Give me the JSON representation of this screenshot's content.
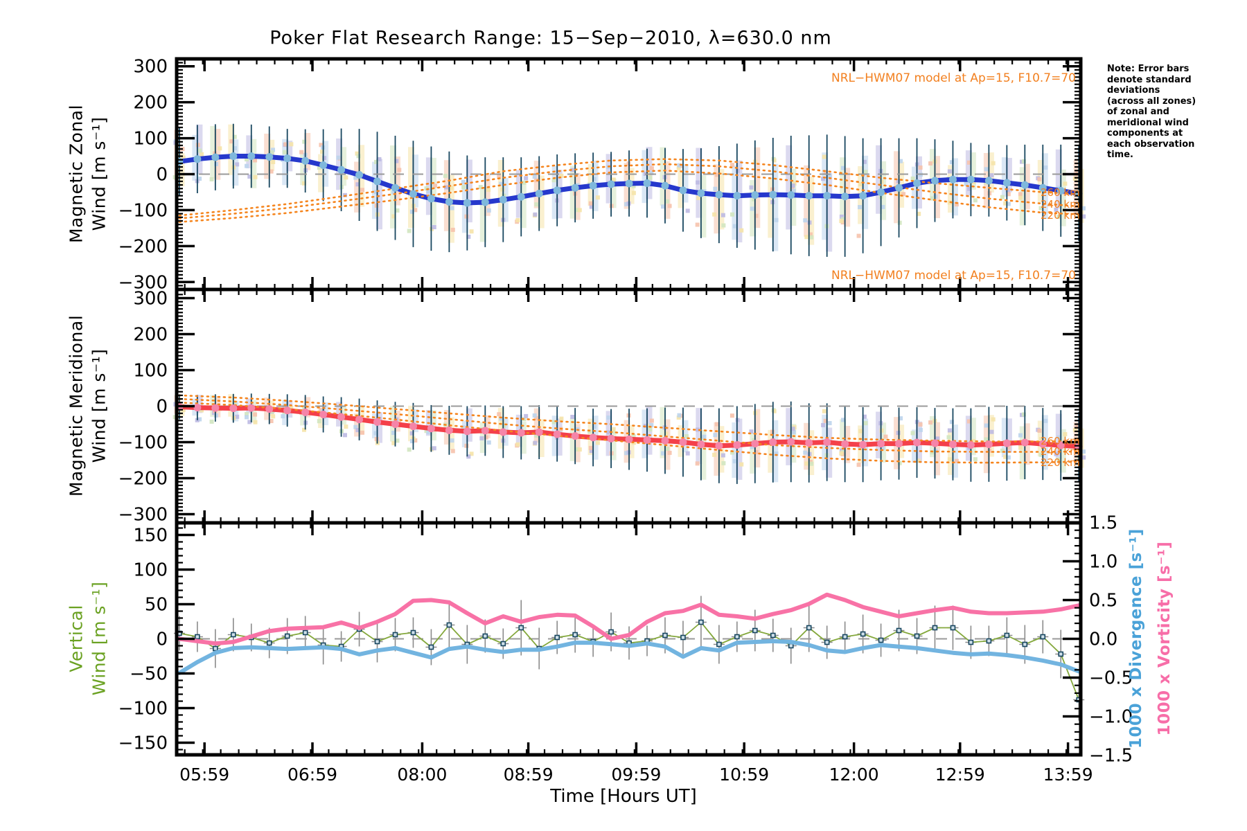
{
  "title": "Poker Flat Research Range: 15−Sep−2010, λ=630.0 nm",
  "note": {
    "lines": [
      "Note: Error bars",
      "denote standard",
      "deviations",
      "(across all zones)",
      "of zonal and",
      "meridional wind",
      "components at",
      "each observation",
      "time."
    ]
  },
  "panel_titles": {
    "zonal_line1": "Magnetic Zonal",
    "zonal_line2": "Wind [m s⁻¹]",
    "meridional_line1": "Magnetic Meridional",
    "meridional_line2": "Wind [m s⁻¹]",
    "vertical_line1": "Vertical",
    "vertical_line2": "Wind [m s⁻¹]",
    "right_divergence": "1000 x Divergence [s⁻¹]",
    "right_vorticity": "1000 x Vorticity [s⁻¹]"
  },
  "colors": {
    "zonal_line": "#2638cc",
    "zonal_marker": "#7fb8dc",
    "meridional_line": "#f4404a",
    "meridional_marker": "#f585a8",
    "model": "#f5851e",
    "legend_text": "#f28020",
    "vertical_line": "#84a83c",
    "vertical_label": "#6aa121",
    "vertical_marker": "#16455f",
    "divergence_line": "#72b4e0",
    "divergence_label": "#4aa2d8",
    "vorticity_line": "#f872a6",
    "vorticity_label": "#f76ea8",
    "errorbar_dark": "#17465f",
    "errorbar_gray": "#8a8a8a",
    "zero_dash": "#999999",
    "band_palette": [
      "#f6c2ac",
      "#f5e3a8",
      "#bcd4ec",
      "#bdb9e2",
      "#d2e5c0"
    ]
  },
  "chart_data": {
    "type": "line",
    "title": "Poker Flat Research Range: 15−Sep−2010, λ=630.0 nm",
    "model_legend": "NRL−HWM07 model at Ap=15, F10.7=70",
    "model_altitudes": [
      "260 km",
      "240 km",
      "220 km"
    ],
    "axes": {
      "wind": {
        "tick_values": [
          300,
          200,
          100,
          0,
          -100,
          -200,
          -300
        ],
        "tick_labels": [
          "300",
          "200",
          "100",
          "0",
          "−100",
          "−200",
          "−300"
        ],
        "ylim": [
          -320,
          320
        ]
      },
      "vertical": {
        "tick_values": [
          150,
          100,
          50,
          0,
          -50,
          -100,
          -150
        ],
        "tick_labels": [
          "150",
          "100",
          "50",
          "0",
          "−50",
          "−100",
          "−150"
        ],
        "ylim": [
          -167,
          167
        ]
      },
      "right": {
        "tick_values": [
          1.5,
          1.0,
          0.5,
          0.0,
          -0.5,
          -1.0,
          -1.5
        ],
        "tick_labels": [
          "1.5",
          "1.0",
          "0.5",
          "0.0",
          "−0.5",
          "−1.0",
          "−1.5"
        ],
        "ylim": [
          -1.5,
          1.5
        ]
      },
      "x": {
        "label": "Time [Hours UT]",
        "tick_hours": [
          5.983,
          6.983,
          8.0,
          8.983,
          9.983,
          10.983,
          12.0,
          12.983,
          13.983
        ],
        "tick_labels": [
          "05:59",
          "06:59",
          "08:00",
          "08:59",
          "09:59",
          "10:59",
          "12:00",
          "12:59",
          "13:59"
        ],
        "range_hours": [
          5.726,
          14.105
        ]
      }
    },
    "time": {
      "start_hour": 5.75,
      "step_minutes": 10,
      "n": 51
    },
    "model_time_hours": [
      5.75,
      6.25,
      6.75,
      7.25,
      7.75,
      8.25,
      8.75,
      9.25,
      9.75,
      10.25,
      10.75,
      11.25,
      11.75,
      12.25,
      12.75,
      13.25,
      13.75,
      14.1
    ],
    "zonal": {
      "ylabel": "Magnetic Zonal Wind [m s⁻¹]",
      "values": [
        35,
        42,
        47,
        50,
        50,
        48,
        44,
        37,
        25,
        12,
        -2,
        -20,
        -38,
        -55,
        -68,
        -77,
        -80,
        -78,
        -71,
        -63,
        -54,
        -45,
        -38,
        -32,
        -28,
        -26,
        -25,
        -32,
        -45,
        -53,
        -57,
        -60,
        -58,
        -57,
        -58,
        -60,
        -60,
        -62,
        -60,
        -50,
        -38,
        -25,
        -18,
        -15,
        -15,
        -18,
        -24,
        -30,
        -38,
        -46,
        -54
      ],
      "stddev": [
        95,
        95,
        92,
        90,
        88,
        85,
        82,
        88,
        100,
        115,
        128,
        138,
        145,
        148,
        145,
        140,
        132,
        125,
        118,
        110,
        104,
        100,
        96,
        92,
        90,
        92,
        96,
        105,
        115,
        125,
        135,
        145,
        152,
        158,
        165,
        168,
        170,
        168,
        160,
        150,
        138,
        125,
        115,
        108,
        102,
        100,
        105,
        112,
        120,
        128,
        132
      ],
      "model_260km": [
        -115,
        -100,
        -83,
        -62,
        -40,
        -18,
        8,
        25,
        38,
        42,
        38,
        25,
        8,
        -10,
        -25,
        -38,
        -50,
        -56
      ],
      "model_240km": [
        -123,
        -110,
        -94,
        -75,
        -55,
        -33,
        -10,
        8,
        22,
        28,
        22,
        8,
        -10,
        -30,
        -50,
        -68,
        -82,
        -90
      ],
      "model_220km": [
        -133,
        -122,
        -108,
        -90,
        -72,
        -52,
        -30,
        -10,
        5,
        10,
        2,
        -12,
        -30,
        -52,
        -72,
        -92,
        -107,
        -112
      ]
    },
    "meridional": {
      "ylabel": "Magnetic Meridional Wind [m s⁻¹]",
      "values": [
        -2,
        -4,
        -5,
        -6,
        -5,
        -8,
        -12,
        -17,
        -23,
        -30,
        -37,
        -44,
        -50,
        -56,
        -62,
        -67,
        -70,
        -68,
        -72,
        -74,
        -72,
        -78,
        -83,
        -87,
        -90,
        -92,
        -94,
        -96,
        -100,
        -106,
        -110,
        -108,
        -104,
        -100,
        -99,
        -102,
        -100,
        -105,
        -107,
        -104,
        -104,
        -101,
        -103,
        -106,
        -108,
        -106,
        -103,
        -101,
        -105,
        -109,
        -112
      ],
      "stddev": [
        35,
        35,
        38,
        40,
        40,
        42,
        45,
        48,
        50,
        55,
        58,
        60,
        62,
        65,
        65,
        68,
        70,
        70,
        72,
        74,
        75,
        76,
        78,
        80,
        82,
        85,
        88,
        92,
        96,
        100,
        104,
        108,
        110,
        112,
        112,
        110,
        108,
        106,
        104,
        102,
        100,
        98,
        98,
        100,
        102,
        104,
        104,
        102,
        100,
        98,
        96
      ],
      "model_260km": [
        30,
        24,
        15,
        4,
        -8,
        -20,
        -32,
        -42,
        -50,
        -60,
        -70,
        -80,
        -88,
        -93,
        -96,
        -98,
        -98,
        -97
      ],
      "model_240km": [
        20,
        13,
        3,
        -9,
        -22,
        -36,
        -50,
        -62,
        -72,
        -84,
        -96,
        -108,
        -116,
        -122,
        -126,
        -127,
        -127,
        -126
      ],
      "model_220km": [
        10,
        3,
        -8,
        -22,
        -37,
        -53,
        -68,
        -82,
        -95,
        -108,
        -122,
        -135,
        -145,
        -152,
        -156,
        -157,
        -156,
        -154
      ]
    },
    "vertical": {
      "ylabel": "Vertical Wind [m s⁻¹]",
      "values": [
        8,
        3,
        -14,
        6,
        2,
        -6,
        4,
        9,
        -9,
        -11,
        14,
        -4,
        6,
        9,
        -12,
        20,
        -8,
        4,
        -7,
        16,
        -14,
        2,
        6,
        -4,
        10,
        -6,
        -3,
        5,
        2,
        24,
        -8,
        3,
        12,
        5,
        -10,
        16,
        -5,
        3,
        7,
        -2,
        12,
        4,
        16,
        16,
        -5,
        -3,
        5,
        -8,
        3,
        -22,
        -88
      ],
      "stddev": [
        25,
        22,
        28,
        24,
        20,
        22,
        26,
        24,
        28,
        22,
        25,
        30,
        24,
        22,
        26,
        35,
        28,
        24,
        22,
        40,
        30,
        24,
        26,
        22,
        28,
        24,
        22,
        26,
        24,
        38,
        28,
        22,
        30,
        24,
        26,
        35,
        24,
        22,
        28,
        24,
        30,
        26,
        32,
        32,
        24,
        22,
        26,
        28,
        24,
        35,
        30
      ]
    },
    "divergence": {
      "ylabel": "1000 x Divergence [s⁻¹]",
      "values": [
        -0.44,
        -0.3,
        -0.18,
        -0.12,
        -0.11,
        -0.12,
        -0.13,
        -0.12,
        -0.11,
        -0.13,
        -0.2,
        -0.15,
        -0.12,
        -0.18,
        -0.24,
        -0.13,
        -0.1,
        -0.14,
        -0.17,
        -0.14,
        -0.14,
        -0.1,
        -0.05,
        -0.05,
        -0.07,
        -0.09,
        -0.06,
        -0.1,
        -0.23,
        -0.12,
        -0.15,
        -0.05,
        -0.04,
        -0.03,
        -0.04,
        -0.08,
        -0.15,
        -0.17,
        -0.12,
        -0.08,
        -0.1,
        -0.12,
        -0.15,
        -0.18,
        -0.2,
        -0.19,
        -0.21,
        -0.24,
        -0.28,
        -0.33,
        -0.42
      ]
    },
    "vorticity": {
      "ylabel": "1000 x Vorticity [s⁻¹]",
      "values": [
        0.0,
        -0.03,
        -0.06,
        -0.04,
        0.03,
        0.1,
        0.13,
        0.14,
        0.15,
        0.21,
        0.14,
        0.22,
        0.32,
        0.49,
        0.5,
        0.47,
        0.33,
        0.2,
        0.29,
        0.22,
        0.28,
        0.31,
        0.3,
        0.16,
        0.0,
        0.05,
        0.22,
        0.33,
        0.36,
        0.44,
        0.31,
        0.29,
        0.26,
        0.32,
        0.37,
        0.45,
        0.57,
        0.5,
        0.41,
        0.35,
        0.29,
        0.33,
        0.37,
        0.4,
        0.35,
        0.33,
        0.33,
        0.34,
        0.35,
        0.38,
        0.43
      ]
    }
  }
}
